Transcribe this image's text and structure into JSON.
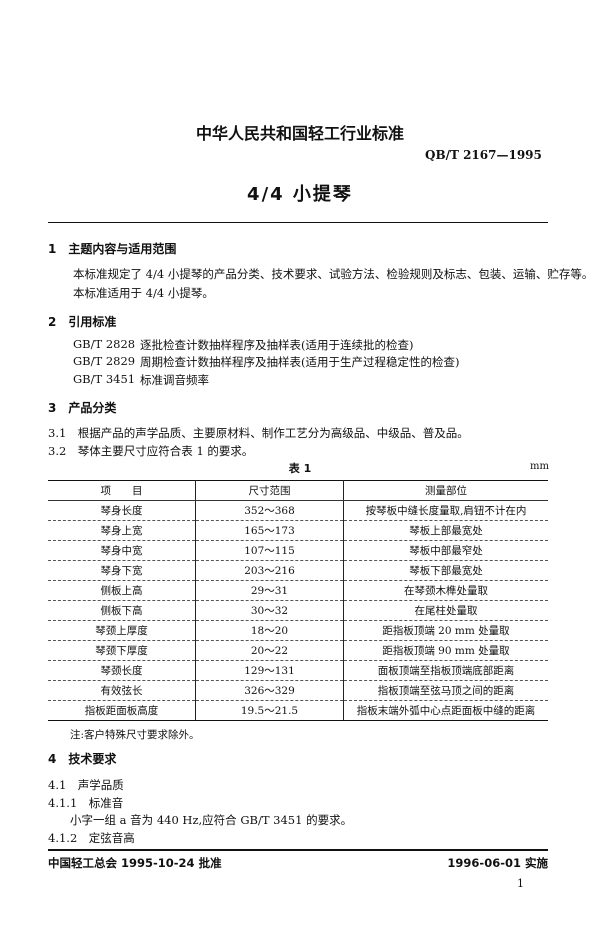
{
  "header": {
    "org_title": "中华人民共和国轻工行业标准",
    "code": "QB/T 2167—1995",
    "doc_title": "4/4 小提琴"
  },
  "s1": {
    "heading": "1　主题内容与适用范围",
    "p1": "本标准规定了 4/4 小提琴的产品分类、技术要求、试验方法、检验规则及标志、包装、运输、贮存等。",
    "p2": "本标准适用于 4/4 小提琴。"
  },
  "s2": {
    "heading": "2　引用标准",
    "refs": [
      {
        "code": "GB/T 2828",
        "title": "逐批检查计数抽样程序及抽样表(适用于连续批的检查)"
      },
      {
        "code": "GB/T 2829",
        "title": "周期检查计数抽样程序及抽样表(适用于生产过程稳定性的检查)"
      },
      {
        "code": "GB/T 3451",
        "title": "标准调音频率"
      }
    ]
  },
  "s3": {
    "heading": "3　产品分类",
    "p31": "3.1　根据产品的声学品质、主要原材料、制作工艺分为高级品、中级品、普及品。",
    "p32": "3.2　琴体主要尺寸应符合表 1 的要求。"
  },
  "table": {
    "caption": "表 1",
    "unit": "mm",
    "headers": [
      "项　　目",
      "尺寸范围",
      "测量部位"
    ],
    "rows": [
      [
        "琴身长度",
        "352～368",
        "按琴板中缝长度量取,肩钮不计在内"
      ],
      [
        "琴身上宽",
        "165～173",
        "琴板上部最宽处"
      ],
      [
        "琴身中宽",
        "107～115",
        "琴板中部最窄处"
      ],
      [
        "琴身下宽",
        "203～216",
        "琴板下部最宽处"
      ],
      [
        "侧板上高",
        "29～31",
        "在琴颈木榫处量取"
      ],
      [
        "侧板下高",
        "30～32",
        "在尾柱处量取"
      ],
      [
        "琴颈上厚度",
        "18～20",
        "距指板顶端 20 mm 处量取"
      ],
      [
        "琴颈下厚度",
        "20～22",
        "距指板顶端 90 mm 处量取"
      ],
      [
        "琴颈长度",
        "129～131",
        "面板顶端至指板顶端底部距离"
      ],
      [
        "有效弦长",
        "326～329",
        "指板顶端至弦马顶之间的距离"
      ],
      [
        "指板距面板高度",
        "19.5～21.5",
        "指板末端外弧中心点距面板中缝的距离"
      ]
    ],
    "note": "注:客户特殊尺寸要求除外。"
  },
  "s4": {
    "heading": "4　技术要求",
    "h41": "4.1　声学品质",
    "h411": "4.1.1　标准音",
    "p411": "小字一组 a 音为 440 Hz,应符合 GB/T 3451 的要求。",
    "h412": "4.1.2　定弦音高"
  },
  "footer": {
    "approved": "中国轻工总会 1995-10-24 批准",
    "effective": "1996-06-01 实施",
    "page": "1"
  }
}
